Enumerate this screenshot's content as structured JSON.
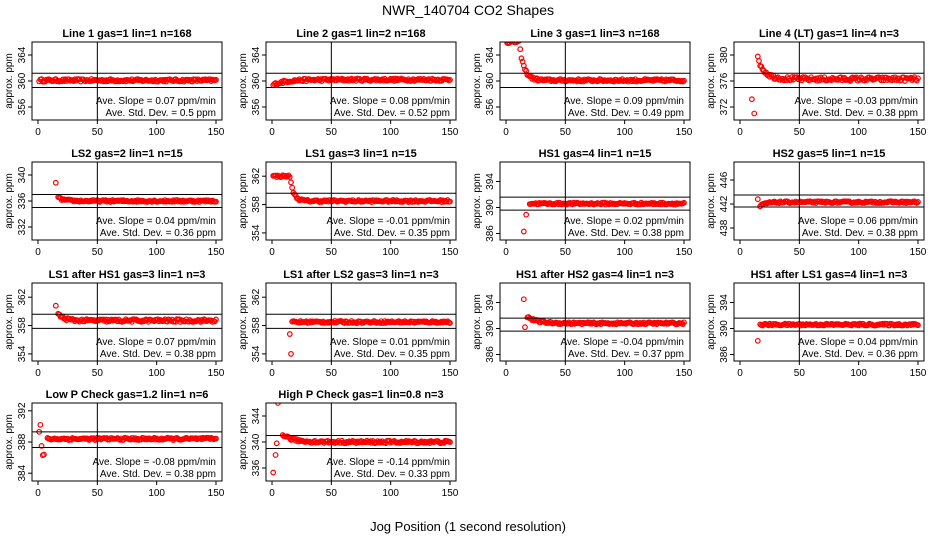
{
  "page": {
    "title": "NWR_140704  CO2 Shapes",
    "xlabel": "Jog Position (1 second resolution)",
    "marker_color": "#ff0000"
  },
  "chart_data": [
    {
      "type": "scatter",
      "title": "Line 1 gas=1 lin=1 n=168",
      "ylabel": "approx. ppm",
      "xlim": [
        0,
        150
      ],
      "xticks": [
        0,
        50,
        100,
        150
      ],
      "ylim": [
        354,
        366
      ],
      "yticks": [
        356,
        360,
        364
      ],
      "hlines": [
        361.2,
        359.0
      ],
      "vline": 50,
      "slope_text": "Ave. Slope =  0.07  ppm/min",
      "sd_text": "Ave. Std. Dev. =  0.5  ppm",
      "shape": {
        "x_start": 1,
        "base": 360.1,
        "noise": 0.2,
        "spikes": []
      }
    },
    {
      "type": "scatter",
      "title": "Line 2 gas=1 lin=2 n=168",
      "ylabel": "approx. ppm",
      "xlim": [
        0,
        150
      ],
      "xticks": [
        0,
        50,
        100,
        150
      ],
      "ylim": [
        354,
        366
      ],
      "yticks": [
        356,
        360,
        364
      ],
      "hlines": [
        361.2,
        359.0
      ],
      "vline": 50,
      "slope_text": "Ave. Slope =  0.08  ppm/min",
      "sd_text": "Ave. Std. Dev. =  0.52  ppm",
      "shape": {
        "x_start": 1,
        "base": 360.2,
        "start": 359.4,
        "decay": 10,
        "noise": 0.2,
        "spikes": []
      }
    },
    {
      "type": "scatter",
      "title": "Line 3 gas=1 lin=3 n=168",
      "ylabel": "approx. ppm",
      "xlim": [
        0,
        150
      ],
      "xticks": [
        0,
        50,
        100,
        150
      ],
      "ylim": [
        354,
        366
      ],
      "yticks": [
        356,
        360,
        364
      ],
      "hlines": [
        361.2,
        359.0
      ],
      "vline": 50,
      "slope_text": "Ave. Slope =  0.09  ppm/min",
      "sd_text": "Ave. Std. Dev. =  0.49  ppm",
      "shape": {
        "x_start": 1,
        "base": 360.1,
        "start": 366,
        "decay": 4,
        "delay": 10,
        "noise": 0.2,
        "spikes": []
      }
    },
    {
      "type": "scatter",
      "title": "Line 4 (LT) gas=1 lin=4 n=3",
      "ylabel": "approx. ppm",
      "xlim": [
        0,
        150
      ],
      "xticks": [
        0,
        50,
        100,
        150
      ],
      "ylim": [
        370,
        382
      ],
      "yticks": [
        372,
        376,
        380
      ],
      "hlines": [
        377.2,
        375.0
      ],
      "vline": 50,
      "slope_text": "Ave. Slope =  -0.03  ppm/min",
      "sd_text": "Ave. Std. Dev. =  0.38  ppm",
      "shape": {
        "x_start": 15,
        "base": 376.3,
        "start": 379.5,
        "decay": 6,
        "noise": 0.3,
        "spikes": [
          [
            10,
            373.2
          ],
          [
            12,
            371.0
          ]
        ]
      }
    },
    {
      "type": "scatter",
      "title": "LS2 gas=2 lin=1 n=15",
      "ylabel": "approx. ppm",
      "xlim": [
        0,
        150
      ],
      "xticks": [
        0,
        50,
        100,
        150
      ],
      "ylim": [
        330,
        342
      ],
      "yticks": [
        332,
        336,
        340
      ],
      "hlines": [
        337.0,
        335.0
      ],
      "vline": 50,
      "slope_text": "Ave. Slope =  0.04  ppm/min",
      "sd_text": "Ave. Std. Dev. =  0.36  ppm",
      "shape": {
        "x_start": 17,
        "base": 336.0,
        "start": 336.5,
        "decay": 5,
        "noise": 0.15,
        "spikes": [
          [
            15,
            338.8
          ]
        ]
      }
    },
    {
      "type": "scatter",
      "title": "LS1 gas=3 lin=1 n=15",
      "ylabel": "approx. ppm",
      "xlim": [
        0,
        150
      ],
      "xticks": [
        0,
        50,
        100,
        150
      ],
      "ylim": [
        353,
        364
      ],
      "yticks": [
        354,
        358,
        362
      ],
      "hlines": [
        359.6,
        357.6
      ],
      "vline": 50,
      "slope_text": "Ave. Slope =  -0.01  ppm/min",
      "sd_text": "Ave. Std. Dev. =  0.35  ppm",
      "shape": {
        "x_start": 1,
        "base": 358.5,
        "start": 362,
        "decay": 3,
        "delay": 14,
        "noise": 0.15,
        "spikes": []
      }
    },
    {
      "type": "scatter",
      "title": "HS1 gas=4 lin=1 n=15",
      "ylabel": "approx. ppm",
      "xlim": [
        0,
        150
      ],
      "xticks": [
        0,
        50,
        100,
        150
      ],
      "ylim": [
        385,
        397
      ],
      "yticks": [
        386,
        390,
        394
      ],
      "hlines": [
        391.6,
        389.6
      ],
      "vline": 50,
      "slope_text": "Ave. Slope =  0.02  ppm/min",
      "sd_text": "Ave. Std. Dev. =  0.38  ppm",
      "shape": {
        "x_start": 20,
        "base": 390.6,
        "noise": 0.15,
        "spikes": [
          [
            15,
            386.3
          ],
          [
            17,
            388.9
          ]
        ]
      }
    },
    {
      "type": "scatter",
      "title": "HS2 gas=5 lin=1 n=15",
      "ylabel": "approx. ppm",
      "xlim": [
        0,
        150
      ],
      "xticks": [
        0,
        50,
        100,
        150
      ],
      "ylim": [
        436,
        449
      ],
      "yticks": [
        438,
        442,
        446
      ],
      "hlines": [
        443.5,
        441.5
      ],
      "vline": 50,
      "slope_text": "Ave. Slope =  0.06  ppm/min",
      "sd_text": "Ave. Std. Dev. =  0.38  ppm",
      "shape": {
        "x_start": 17,
        "base": 442.3,
        "start": 441.6,
        "decay": 4,
        "noise": 0.15,
        "spikes": [
          [
            15,
            442.8
          ]
        ]
      }
    },
    {
      "type": "scatter",
      "title": "LS1 after HS1 gas=3 lin=1 n=3",
      "ylabel": "approx. ppm",
      "xlim": [
        0,
        150
      ],
      "xticks": [
        0,
        50,
        100,
        150
      ],
      "ylim": [
        353,
        364
      ],
      "yticks": [
        354,
        358,
        362
      ],
      "hlines": [
        359.6,
        357.6
      ],
      "vline": 50,
      "slope_text": "Ave. Slope =  0.07  ppm/min",
      "sd_text": "Ave. Std. Dev. =  0.38  ppm",
      "shape": {
        "x_start": 17,
        "base": 358.7,
        "start": 359.6,
        "decay": 5,
        "noise": 0.2,
        "spikes": [
          [
            15,
            360.8
          ]
        ]
      }
    },
    {
      "type": "scatter",
      "title": "LS1 after LS2 gas=3 lin=1 n=3",
      "ylabel": "approx. ppm",
      "xlim": [
        0,
        150
      ],
      "xticks": [
        0,
        50,
        100,
        150
      ],
      "ylim": [
        353,
        364
      ],
      "yticks": [
        354,
        358,
        362
      ],
      "hlines": [
        359.6,
        357.6
      ],
      "vline": 50,
      "slope_text": "Ave. Slope =  0.01  ppm/min",
      "sd_text": "Ave. Std. Dev. =  0.35  ppm",
      "shape": {
        "x_start": 17,
        "base": 358.5,
        "noise": 0.15,
        "spikes": [
          [
            15,
            356.8
          ],
          [
            16,
            354.0
          ]
        ]
      }
    },
    {
      "type": "scatter",
      "title": "HS1 after HS2 gas=4 lin=1 n=3",
      "ylabel": "approx. ppm",
      "xlim": [
        0,
        150
      ],
      "xticks": [
        0,
        50,
        100,
        150
      ],
      "ylim": [
        385,
        397
      ],
      "yticks": [
        386,
        390,
        394
      ],
      "hlines": [
        391.6,
        389.6
      ],
      "vline": 50,
      "slope_text": "Ave. Slope =  -0.04  ppm/min",
      "sd_text": "Ave. Std. Dev. =  0.37  ppm",
      "shape": {
        "x_start": 18,
        "base": 390.8,
        "start": 391.8,
        "decay": 8,
        "noise": 0.15,
        "spikes": [
          [
            15,
            394.5
          ],
          [
            16,
            390.2
          ]
        ]
      }
    },
    {
      "type": "scatter",
      "title": "HS1 after LS1 gas=4 lin=1 n=3",
      "ylabel": "approx. ppm",
      "xlim": [
        0,
        150
      ],
      "xticks": [
        0,
        50,
        100,
        150
      ],
      "ylim": [
        385,
        397
      ],
      "yticks": [
        386,
        390,
        394
      ],
      "hlines": [
        391.6,
        389.6
      ],
      "vline": 50,
      "slope_text": "Ave. Slope =  0.04  ppm/min",
      "sd_text": "Ave. Std. Dev. =  0.36  ppm",
      "shape": {
        "x_start": 17,
        "base": 390.6,
        "noise": 0.15,
        "spikes": [
          [
            15,
            388.1
          ]
        ]
      }
    },
    {
      "type": "scatter",
      "title": "Low P Check gas=1.2 lin=1 n=6",
      "ylabel": "approx. ppm",
      "xlim": [
        0,
        150
      ],
      "xticks": [
        0,
        50,
        100,
        150
      ],
      "ylim": [
        383,
        393
      ],
      "yticks": [
        384,
        388,
        392
      ],
      "hlines": [
        389.3,
        387.3
      ],
      "vline": 50,
      "slope_text": "Ave. Slope =  -0.08  ppm/min",
      "sd_text": "Ave. Std. Dev. =  0.38  ppm",
      "shape": {
        "x_start": 8,
        "base": 388.4,
        "noise": 0.15,
        "spikes": [
          [
            1,
            389.3
          ],
          [
            2,
            390.2
          ],
          [
            3,
            387.5
          ],
          [
            4,
            386.3
          ],
          [
            5,
            386.4
          ]
        ]
      }
    },
    {
      "type": "scatter",
      "title": "High P Check gas=1 lin=0.8 n=3",
      "ylabel": "approx. ppm",
      "xlim": [
        0,
        150
      ],
      "xticks": [
        0,
        50,
        100,
        150
      ],
      "ylim": [
        334,
        346
      ],
      "yticks": [
        336,
        340,
        344
      ],
      "hlines": [
        341.0,
        339.0
      ],
      "vline": 50,
      "slope_text": "Ave. Slope =  -0.14  ppm/min",
      "sd_text": "Ave. Std. Dev. =  0.33  ppm",
      "shape": {
        "x_start": 9,
        "base": 340.0,
        "start": 341.2,
        "decay": 8,
        "noise": 0.2,
        "spikes": [
          [
            1,
            335.3
          ],
          [
            3,
            338.0
          ],
          [
            4,
            339.8
          ],
          [
            5,
            346.0
          ]
        ]
      }
    }
  ]
}
